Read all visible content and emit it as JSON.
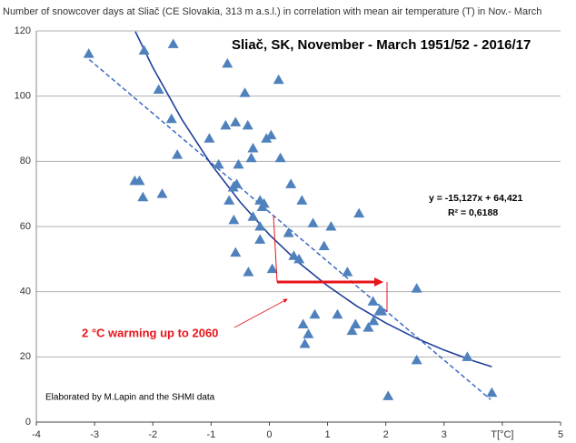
{
  "chart_data": {
    "type": "scatter",
    "title": "Number of snowcover days at Sliač (CE Slovakia, 313 m a.s.l.) in correlation with mean air temperature (T) in Nov.- March",
    "subtitle": "Sliač, SK, November - March 1951/52 - 2016/17",
    "equation": "y = -15,127x + 64,421",
    "r_squared": "R² = 0,6188",
    "credit": "Elaborated by M.Lapin and the SHMI data",
    "annotation": "2 °C warming up to 2060",
    "xlim": [
      -4,
      5
    ],
    "ylim": [
      0,
      120
    ],
    "xticks": [
      -4,
      -3,
      -2,
      -1,
      0,
      1,
      2,
      3,
      {
        "value": 4,
        "label": "T[°C]"
      },
      5
    ],
    "yticks": [
      0,
      20,
      40,
      60,
      80,
      100,
      120
    ],
    "grid": true,
    "series": [
      {
        "color": "#4f81bd",
        "x": [
          -3.1,
          -2.15,
          -1.65,
          -1.9,
          -1.68,
          -1.58,
          -0.72,
          -0.42,
          -1.03,
          -0.75,
          -0.58,
          -0.37,
          -0.28,
          -0.31,
          0.16,
          0.03,
          -0.05,
          0.19,
          -0.87,
          -0.53,
          -0.56,
          -0.62,
          -0.69,
          -2.31,
          -2.23,
          -1.84,
          -2.17,
          -0.16,
          -0.09,
          -0.12,
          -0.28,
          -0.61,
          -0.16,
          -0.16,
          0.37,
          0.56,
          0.33,
          0.75,
          1.06,
          1.54,
          0.94,
          0.42,
          0.51,
          -0.58,
          -0.36,
          0.05,
          1.34,
          1.78,
          1.89,
          1.79,
          1.7,
          1.48,
          1.42,
          0.78,
          1.17,
          0.58,
          0.67,
          0.61,
          2.53,
          2.53,
          2.04,
          3.4,
          3.82,
          1.93
        ],
        "values": [
          113,
          114,
          116,
          102,
          93,
          82,
          110,
          101,
          87,
          91,
          92,
          91,
          84,
          81,
          105,
          88,
          87,
          81,
          79,
          79,
          73,
          72,
          68,
          74,
          74,
          70,
          69,
          68,
          67,
          66,
          63,
          62,
          60,
          56,
          73,
          68,
          58,
          61,
          60,
          64,
          54,
          51,
          50,
          52,
          46,
          47,
          46,
          37,
          34,
          31,
          29,
          30,
          28,
          33,
          33,
          30,
          27,
          24,
          41,
          19,
          8,
          20,
          9,
          34
        ]
      }
    ],
    "linear_fit": {
      "color": "#3a6bc4",
      "x": [
        -3.09,
        3.8
      ],
      "values": [
        111.2,
        6.9
      ]
    },
    "curve_fit": {
      "color": "#1f3f9a",
      "x": [
        -2.3,
        -2,
        -1.5,
        -1,
        -0.5,
        0,
        0.5,
        1,
        1.5,
        2,
        2.5,
        3,
        3.5,
        3.82
      ],
      "values": [
        119.8,
        108.8,
        92.8,
        79.1,
        67.5,
        57.5,
        49.0,
        41.8,
        35.6,
        30.4,
        25.9,
        22.1,
        18.8,
        17.0
      ]
    }
  }
}
